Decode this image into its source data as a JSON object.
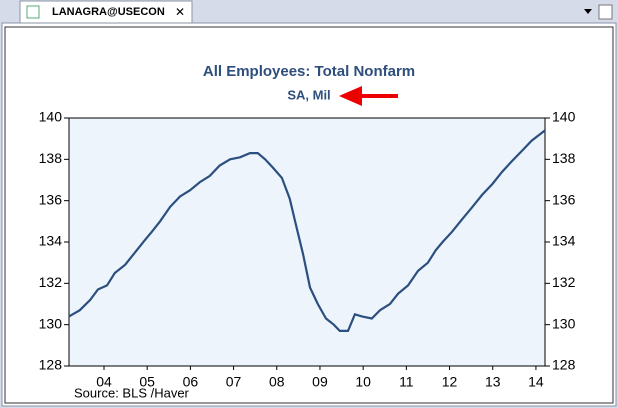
{
  "tab": {
    "label": "LANAGRA@USECON"
  },
  "chart_data": {
    "type": "line",
    "title": "All Employees: Total Nonfarm",
    "subtitle": "SA, Mil",
    "source": "Source:  BLS /Haver",
    "x": [
      2003.69,
      2003.94,
      2004.18,
      2004.36,
      2004.57,
      2004.75,
      2004.99,
      2005.22,
      2005.45,
      2005.61,
      2005.8,
      2006.03,
      2006.26,
      2006.49,
      2006.72,
      2006.95,
      2007.18,
      2007.42,
      2007.65,
      2007.88,
      2008.06,
      2008.23,
      2008.41,
      2008.62,
      2008.8,
      2008.97,
      2009.11,
      2009.27,
      2009.45,
      2009.64,
      2009.82,
      2009.96,
      2010.15,
      2010.31,
      2010.47,
      2010.7,
      2010.89,
      2011.12,
      2011.31,
      2011.54,
      2011.77,
      2012.0,
      2012.18,
      2012.34,
      2012.56,
      2012.79,
      2013.03,
      2013.26,
      2013.49,
      2013.72,
      2013.94,
      2014.17,
      2014.4,
      2014.71
    ],
    "series": [
      {
        "name": "All Employees: Total Nonfarm",
        "color": "#2b4f7e",
        "values": [
          130.4,
          130.7,
          131.2,
          131.7,
          131.9,
          132.5,
          132.9,
          133.5,
          134.1,
          134.5,
          135.0,
          135.7,
          136.2,
          136.5,
          136.9,
          137.2,
          137.7,
          138.0,
          138.1,
          138.3,
          138.3,
          138.0,
          137.6,
          137.1,
          136.1,
          134.6,
          133.4,
          131.8,
          131.0,
          130.3,
          130.0,
          129.7,
          129.7,
          130.5,
          130.4,
          130.3,
          130.7,
          131.0,
          131.5,
          131.9,
          132.6,
          133.0,
          133.6,
          134.0,
          134.5,
          135.1,
          135.7,
          136.3,
          136.8,
          137.4,
          137.9,
          138.4,
          138.9,
          139.4
        ]
      }
    ],
    "xlim": [
      2003.69,
      2014.71
    ],
    "xticks": [
      {
        "value": 2004.5,
        "label": "04"
      },
      {
        "value": 2005.5,
        "label": "05"
      },
      {
        "value": 2006.5,
        "label": "06"
      },
      {
        "value": 2007.5,
        "label": "07"
      },
      {
        "value": 2008.5,
        "label": "08"
      },
      {
        "value": 2009.5,
        "label": "09"
      },
      {
        "value": 2010.5,
        "label": "10"
      },
      {
        "value": 2011.5,
        "label": "11"
      },
      {
        "value": 2012.5,
        "label": "12"
      },
      {
        "value": 2013.5,
        "label": "13"
      },
      {
        "value": 2014.5,
        "label": "14"
      }
    ],
    "ylim": [
      128,
      140
    ],
    "yticks": [
      128,
      130,
      132,
      134,
      136,
      138,
      140
    ],
    "y2lim": [
      128,
      140
    ],
    "y2ticks": [
      128,
      130,
      132,
      134,
      136,
      138,
      140
    ]
  }
}
